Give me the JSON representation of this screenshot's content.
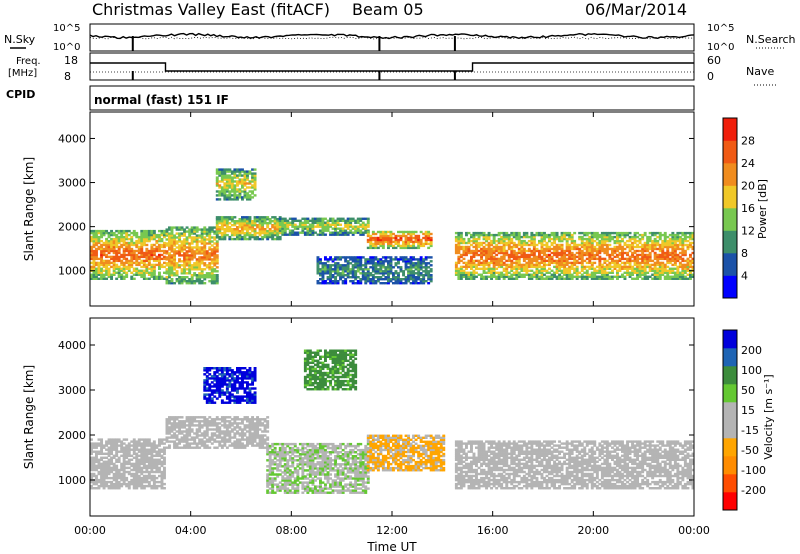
{
  "header": {
    "station": "Christmas Valley East (fitACF)",
    "beam": "Beam 05",
    "date": "06/Mar/2014"
  },
  "noise_panel": {
    "left_label": "N.Sky",
    "right_label": "N.Search",
    "left_ticks": [
      "10^5",
      "10^0"
    ],
    "right_ticks": [
      "10^5",
      "10^0"
    ]
  },
  "freq_panel": {
    "left_label_1": "Freq.",
    "left_label_2": "[MHz]",
    "right_label": "Nave",
    "left_ticks": [
      "18",
      "8"
    ],
    "right_ticks": [
      "60",
      "0"
    ]
  },
  "cpid": {
    "label": "CPID",
    "value": "normal (fast) 151 IF"
  },
  "colors": {
    "power_scale": [
      "#0000ff",
      "#1b52a8",
      "#3d8e6a",
      "#78c850",
      "#f0c828",
      "#f08c1e",
      "#f05a14",
      "#f01e0a"
    ],
    "velocity_scale": [
      "#ff0000",
      "#ff4d00",
      "#ff8c00",
      "#ffa500",
      "#b4b4b4",
      "#b4b4b4",
      "#64c832",
      "#3c8c3c",
      "#1e64b4",
      "#0000dc"
    ],
    "ground_scatter": "#b4b4b4"
  },
  "chart_data": [
    {
      "type": "heatmap",
      "name": "power",
      "title": "",
      "xlabel": "Time UT",
      "ylabel": "Slant Range [km]",
      "xlim": [
        0,
        24
      ],
      "ylim": [
        200,
        4600
      ],
      "x_ticks": [
        "00:00",
        "04:00",
        "08:00",
        "12:00",
        "16:00",
        "20:00",
        "00:00"
      ],
      "y_ticks": [
        "1000",
        "2000",
        "3000",
        "4000"
      ],
      "colorbar": {
        "label": "Power [dB]",
        "ticks": [
          "4",
          "8",
          "12",
          "16",
          "20",
          "24",
          "28"
        ],
        "range": [
          0,
          30
        ]
      },
      "regions": [
        {
          "t0": 0.0,
          "t1": 3.0,
          "r0": 800,
          "r1": 1900,
          "level": 24
        },
        {
          "t0": 3.0,
          "t1": 5.0,
          "r0": 700,
          "r1": 2000,
          "level": 22
        },
        {
          "t0": 5.0,
          "t1": 7.5,
          "r0": 1700,
          "r1": 2200,
          "level": 20
        },
        {
          "t0": 7.5,
          "t1": 11.0,
          "r0": 1800,
          "r1": 2200,
          "level": 16
        },
        {
          "t0": 11.0,
          "t1": 13.5,
          "r0": 1500,
          "r1": 1900,
          "level": 26
        },
        {
          "t0": 14.5,
          "t1": 24.0,
          "r0": 800,
          "r1": 1850,
          "level": 24
        },
        {
          "t0": 5.0,
          "t1": 6.5,
          "r0": 2600,
          "r1": 3300,
          "level": 18
        },
        {
          "t0": 9.0,
          "t1": 13.5,
          "r0": 700,
          "r1": 1300,
          "level": 10
        }
      ]
    },
    {
      "type": "heatmap",
      "name": "velocity",
      "title": "",
      "xlabel": "Time UT",
      "ylabel": "Slant Range [km]",
      "xlim": [
        0,
        24
      ],
      "ylim": [
        200,
        4600
      ],
      "x_ticks": [
        "00:00",
        "04:00",
        "08:00",
        "12:00",
        "16:00",
        "20:00",
        "00:00"
      ],
      "y_ticks": [
        "1000",
        "2000",
        "3000",
        "4000"
      ],
      "colorbar": {
        "label": "Velocity [m s⁻¹]",
        "ticks": [
          "200",
          "100",
          "50",
          "15",
          "-15",
          "-50",
          "-100",
          "-200"
        ],
        "range": [
          -250,
          250
        ]
      },
      "regions": [
        {
          "t0": 0.0,
          "t1": 3.0,
          "r0": 800,
          "r1": 1900,
          "velocity": 0
        },
        {
          "t0": 3.0,
          "t1": 7.0,
          "r0": 1700,
          "r1": 2400,
          "velocity": 0
        },
        {
          "t0": 14.5,
          "t1": 24.0,
          "r0": 800,
          "r1": 1850,
          "velocity": 0
        },
        {
          "t0": 7.0,
          "t1": 11.0,
          "r0": 700,
          "r1": 1800,
          "velocity": 40
        },
        {
          "t0": 11.0,
          "t1": 14.0,
          "r0": 1200,
          "r1": 2000,
          "velocity": -60
        },
        {
          "t0": 4.5,
          "t1": 6.5,
          "r0": 2700,
          "r1": 3500,
          "velocity": 220
        },
        {
          "t0": 8.5,
          "t1": 10.5,
          "r0": 3000,
          "r1": 3900,
          "velocity": 120
        }
      ]
    }
  ]
}
